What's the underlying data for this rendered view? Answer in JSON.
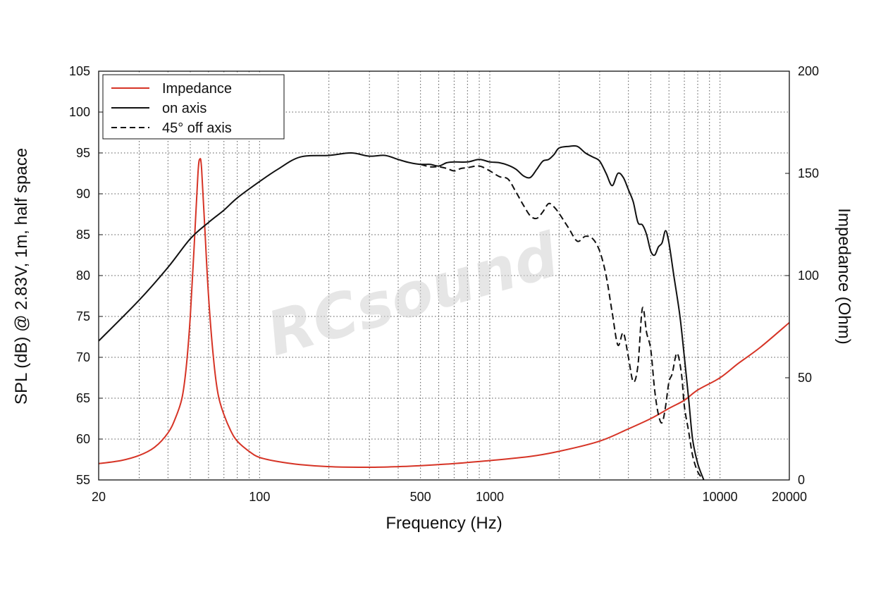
{
  "chart_data": {
    "type": "line",
    "xlabel": "Frequency (Hz)",
    "ylabel": "SPL (dB) @ 2.83V, 1m, half space",
    "y2label": "Impedance (Ohm)",
    "x_scale": "log",
    "xlim": [
      20,
      20000
    ],
    "ylim": [
      55,
      105
    ],
    "y2lim": [
      0,
      200
    ],
    "grid": true,
    "legend_position": "top-left",
    "x_ticks": [
      20,
      100,
      500,
      1000,
      10000,
      20000
    ],
    "x_tick_labels": [
      "20",
      "100",
      "500",
      "1000",
      "10000",
      "20000"
    ],
    "y_ticks": [
      55,
      60,
      65,
      70,
      75,
      80,
      85,
      90,
      95,
      100,
      105
    ],
    "y_tick_labels": [
      "55",
      "60",
      "65",
      "70",
      "75",
      "80",
      "85",
      "90",
      "95",
      "100",
      "105"
    ],
    "y2_ticks": [
      0,
      50,
      100,
      150,
      200
    ],
    "y2_tick_labels": [
      "0",
      "50",
      "100",
      "150",
      "200"
    ],
    "watermark": "RCsound",
    "series": [
      {
        "name": "Impedance",
        "axis": "right",
        "color": "#d63426",
        "style": "solid",
        "points": [
          [
            20,
            8
          ],
          [
            25,
            9.5
          ],
          [
            30,
            12
          ],
          [
            35,
            16
          ],
          [
            40,
            23
          ],
          [
            43,
            30
          ],
          [
            46,
            40
          ],
          [
            48,
            55
          ],
          [
            50,
            80
          ],
          [
            52,
            115
          ],
          [
            54,
            150
          ],
          [
            55,
            157
          ],
          [
            56,
            152
          ],
          [
            58,
            120
          ],
          [
            60,
            90
          ],
          [
            63,
            60
          ],
          [
            66,
            42
          ],
          [
            70,
            32
          ],
          [
            75,
            24
          ],
          [
            80,
            19
          ],
          [
            90,
            14
          ],
          [
            100,
            11
          ],
          [
            120,
            9
          ],
          [
            150,
            7.5
          ],
          [
            200,
            6.5
          ],
          [
            300,
            6.2
          ],
          [
            400,
            6.5
          ],
          [
            500,
            7
          ],
          [
            700,
            8
          ],
          [
            1000,
            9.5
          ],
          [
            1500,
            11.5
          ],
          [
            2000,
            14
          ],
          [
            3000,
            19
          ],
          [
            4000,
            25
          ],
          [
            5000,
            30
          ],
          [
            6000,
            35
          ],
          [
            7000,
            39
          ],
          [
            8000,
            44
          ],
          [
            10000,
            50
          ],
          [
            12000,
            57
          ],
          [
            15000,
            65
          ],
          [
            20000,
            77
          ]
        ]
      },
      {
        "name": "on axis",
        "axis": "left",
        "color": "#111111",
        "style": "solid",
        "points": [
          [
            20,
            72
          ],
          [
            30,
            77
          ],
          [
            40,
            81
          ],
          [
            50,
            84.5
          ],
          [
            60,
            86.5
          ],
          [
            70,
            88
          ],
          [
            80,
            89.5
          ],
          [
            100,
            91.5
          ],
          [
            120,
            93
          ],
          [
            150,
            94.5
          ],
          [
            200,
            94.7
          ],
          [
            250,
            95
          ],
          [
            300,
            94.6
          ],
          [
            350,
            94.7
          ],
          [
            400,
            94.2
          ],
          [
            450,
            93.8
          ],
          [
            500,
            93.6
          ],
          [
            550,
            93.6
          ],
          [
            600,
            93.4
          ],
          [
            650,
            93.8
          ],
          [
            700,
            93.9
          ],
          [
            800,
            93.9
          ],
          [
            900,
            94.2
          ],
          [
            1000,
            93.9
          ],
          [
            1100,
            93.8
          ],
          [
            1200,
            93.5
          ],
          [
            1300,
            93
          ],
          [
            1400,
            92.2
          ],
          [
            1500,
            92
          ],
          [
            1600,
            93
          ],
          [
            1700,
            94
          ],
          [
            1800,
            94.2
          ],
          [
            1900,
            94.8
          ],
          [
            2000,
            95.6
          ],
          [
            2200,
            95.8
          ],
          [
            2400,
            95.8
          ],
          [
            2600,
            95
          ],
          [
            2800,
            94.5
          ],
          [
            3000,
            94
          ],
          [
            3200,
            92.5
          ],
          [
            3400,
            91
          ],
          [
            3600,
            92.5
          ],
          [
            3800,
            92
          ],
          [
            4000,
            90.5
          ],
          [
            4200,
            89
          ],
          [
            4400,
            86.5
          ],
          [
            4600,
            86.2
          ],
          [
            4800,
            85
          ],
          [
            5000,
            83
          ],
          [
            5200,
            82.5
          ],
          [
            5400,
            83.5
          ],
          [
            5600,
            84
          ],
          [
            5800,
            85.5
          ],
          [
            6000,
            84
          ],
          [
            6300,
            80
          ],
          [
            6700,
            75
          ],
          [
            7000,
            70
          ],
          [
            7300,
            65
          ],
          [
            7600,
            60
          ],
          [
            8000,
            57
          ],
          [
            8500,
            55
          ]
        ]
      },
      {
        "name": "45° off axis",
        "axis": "left",
        "color": "#111111",
        "style": "dashed",
        "points": [
          [
            500,
            93.6
          ],
          [
            550,
            93.3
          ],
          [
            600,
            93.3
          ],
          [
            650,
            93.1
          ],
          [
            700,
            92.8
          ],
          [
            750,
            93.1
          ],
          [
            800,
            93.2
          ],
          [
            900,
            93.4
          ],
          [
            1000,
            92.8
          ],
          [
            1100,
            92.1
          ],
          [
            1200,
            91.8
          ],
          [
            1300,
            90.2
          ],
          [
            1400,
            88.6
          ],
          [
            1500,
            87.3
          ],
          [
            1600,
            87
          ],
          [
            1700,
            87.8
          ],
          [
            1800,
            88.8
          ],
          [
            1900,
            88.4
          ],
          [
            2000,
            87.6
          ],
          [
            2200,
            85.8
          ],
          [
            2400,
            84.2
          ],
          [
            2600,
            84.8
          ],
          [
            2800,
            84.5
          ],
          [
            3000,
            83
          ],
          [
            3200,
            80
          ],
          [
            3400,
            75.5
          ],
          [
            3600,
            71.5
          ],
          [
            3800,
            73
          ],
          [
            4000,
            70
          ],
          [
            4200,
            67
          ],
          [
            4400,
            69
          ],
          [
            4600,
            76
          ],
          [
            4800,
            73
          ],
          [
            5000,
            71
          ],
          [
            5200,
            66
          ],
          [
            5400,
            63
          ],
          [
            5600,
            62
          ],
          [
            5800,
            64
          ],
          [
            6000,
            67
          ],
          [
            6200,
            68
          ],
          [
            6500,
            70.5
          ],
          [
            6800,
            68
          ],
          [
            7000,
            64
          ],
          [
            7300,
            61
          ],
          [
            7600,
            58
          ],
          [
            8000,
            56
          ],
          [
            8500,
            55
          ]
        ]
      }
    ]
  }
}
